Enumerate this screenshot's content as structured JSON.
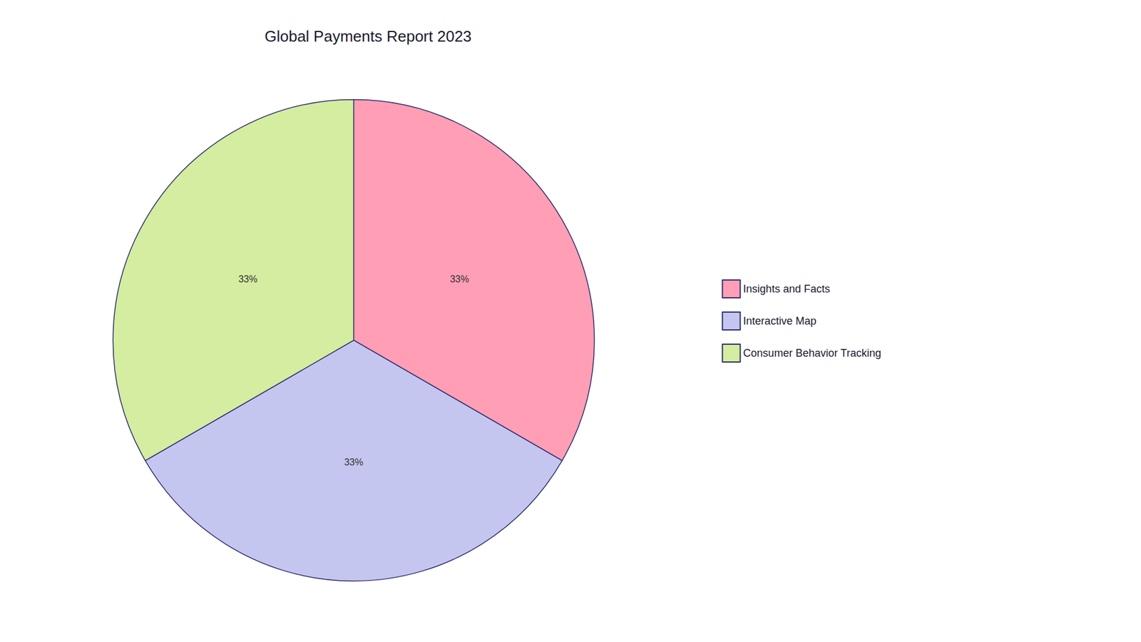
{
  "chart_data": {
    "type": "pie",
    "title": "Global Payments Report 2023",
    "categories": [
      "Insights and Facts",
      "Interactive Map",
      "Consumer Behavior Tracking"
    ],
    "values": [
      33,
      33,
      33
    ],
    "value_labels": [
      "33%",
      "33%",
      "33%"
    ],
    "colors": [
      "#FF9EB5",
      "#C5C6F0",
      "#D4EDA0"
    ],
    "data_labels": true,
    "legend": "right"
  }
}
